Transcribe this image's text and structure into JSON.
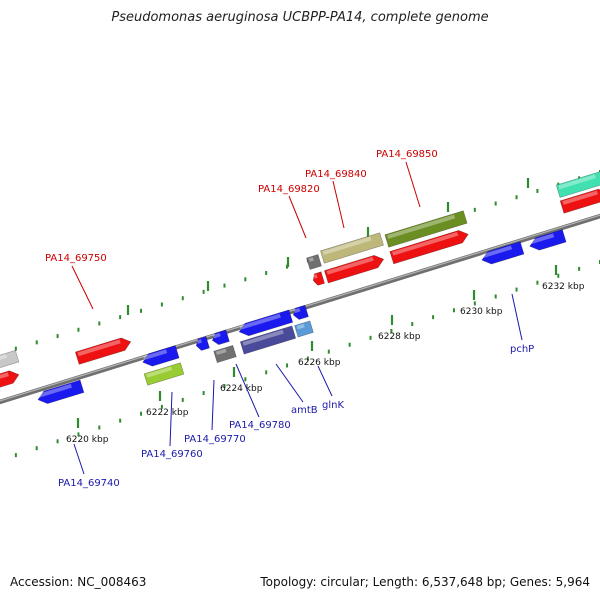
{
  "title": "Pseudomonas aeruginosa UCBPP-PA14, complete genome",
  "footer": {
    "accession": "Accession: NC_008463",
    "summary": "Topology: circular; Length: 6,537,648 bp; Genes: 5,964"
  },
  "colors": {
    "backbone": "#808080",
    "tick": "#2e8b2e",
    "upper_label": "#cc0000",
    "lower_label": "#1a1aaa",
    "kbp_label": "#111111"
  },
  "kbp_labels": [
    "6220 kbp",
    "6222 kbp",
    "6224 kbp",
    "6226 kbp",
    "6228 kbp",
    "6230 kbp",
    "6232 kbp"
  ],
  "gene_labels_upper": [
    "PA14_69750",
    "PA14_69820",
    "PA14_69840",
    "PA14_69850"
  ],
  "gene_labels_lower": [
    "PA14_69740",
    "PA14_69760",
    "PA14_69770",
    "PA14_69780",
    "amtB",
    "glnK",
    "pchP"
  ]
}
